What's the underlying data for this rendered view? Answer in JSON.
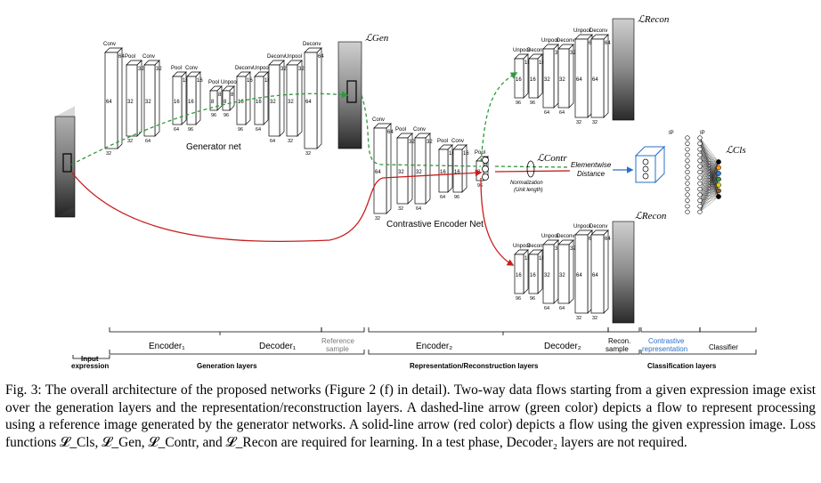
{
  "figure_number": "Fig. 3:",
  "caption": "The overall architecture of the proposed networks (Figure 2 (f) in detail). Two-way data flows starting from a given expression image exist over the generation layers and the representation/reconstruction layers. A dashed-line arrow (green color) depicts a flow to represent processing using a reference image generated by the generator networks. A solid-line arrow (red color) depicts a flow using the given expression image. Loss functions 𝓛_Cls, 𝓛_Gen, 𝓛_Contr, and 𝓛_Recon are required for learning. In a test phase, Decoder₂ layers are not required.",
  "losses": {
    "gen": "ℒGen",
    "recon_top": "ℒRecon",
    "recon_bottom": "ℒRecon",
    "contr": "ℒContr",
    "cls": "ℒCls"
  },
  "net_titles": {
    "generator": "Generator net",
    "contrastive": "Contrastive Encoder Net"
  },
  "distance": {
    "line1": "Elementwise",
    "line2": "Distance",
    "norm1": "Normalization",
    "norm2": "(Unit length)"
  },
  "ip_labels": [
    "IP",
    "IP"
  ],
  "stage_labels": {
    "input": [
      "Input",
      "expression"
    ],
    "encoder1": "Encoder₁",
    "decoder1": "Decoder₁",
    "reference": [
      "Reference",
      "sample"
    ],
    "encoder2": "Encoder₂",
    "decoder2": "Decoder₂",
    "recon": [
      "Recon.",
      "sample"
    ],
    "contrastive": [
      "Contrastive",
      "representation"
    ],
    "classifier": "Classifier"
  },
  "group_labels": {
    "generation": "Generation layers",
    "representation": "Representation/Reconstruction layers",
    "classification": "Classification layers"
  },
  "colors": {
    "green_flow": "#2e9a3c",
    "red_flow": "#c81e1e",
    "blue_box": "#2a6fc9",
    "gray_text": "#777777"
  },
  "generator_layers": {
    "op_labels": [
      "Conv",
      "Pool",
      "Conv",
      "Pool",
      "Conv",
      "Pool",
      "Unpool",
      "Deconv",
      "Unpool",
      "Deconv",
      "Unpool",
      "Deconv"
    ],
    "depth_labels": [
      "64",
      "32",
      "32",
      "16",
      "16",
      "8",
      "8",
      "16",
      "16",
      "32",
      "32",
      "64"
    ],
    "height_labels": [
      "64",
      "32",
      "32",
      "16",
      "16",
      "8",
      "8",
      "16",
      "16",
      "32",
      "32",
      "64"
    ],
    "bottom_labels": [
      "32",
      "32",
      "64",
      "64",
      "96",
      "96",
      "96",
      "96",
      "64",
      "64",
      "32",
      "32"
    ]
  },
  "encoder_layers": {
    "op_labels": [
      "Conv",
      "Pool",
      "Conv",
      "Pool",
      "Conv",
      "Pool"
    ],
    "depth_labels": [
      "64",
      "32",
      "32",
      "16",
      "16",
      "8"
    ],
    "height_labels": [
      "64",
      "32",
      "32",
      "16",
      "16",
      "8"
    ],
    "bottom_labels": [
      "32",
      "32",
      "64",
      "64",
      "96",
      "96"
    ]
  },
  "decoder_layers": {
    "op_labels": [
      "Unpool",
      "Deconv",
      "Unpool",
      "Deconv",
      "Unpool",
      "Deconv"
    ],
    "depth_labels": [
      "16",
      "16",
      "32",
      "32",
      "64",
      "64"
    ],
    "height_labels": [
      "16",
      "16",
      "32",
      "32",
      "64",
      "64"
    ],
    "bottom_labels": [
      "96",
      "96",
      "64",
      "64",
      "32",
      "32"
    ]
  }
}
